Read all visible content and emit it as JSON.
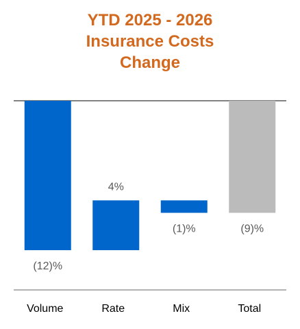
{
  "chart_data": {
    "type": "waterfall",
    "title": "YTD 2025 - 2026 Insurance Costs Change",
    "categories": [
      "Volume",
      "Rate",
      "Mix",
      "Total"
    ],
    "values": [
      -12,
      4,
      -1,
      -9
    ],
    "value_labels": [
      "(12)%",
      "4%",
      "(1)%",
      "(9)%"
    ],
    "totals": [
      false,
      false,
      false,
      true
    ],
    "colors": [
      "#0066cc",
      "#0066cc",
      "#0066cc",
      "#bbbbbb"
    ]
  }
}
